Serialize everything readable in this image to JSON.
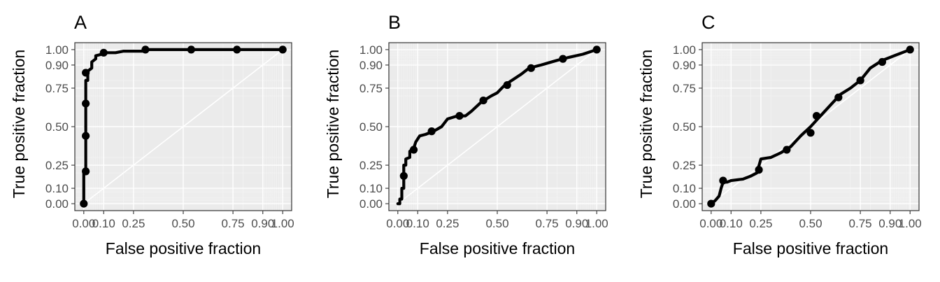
{
  "chart_data": [
    {
      "type": "line",
      "panel": "A",
      "title": "A",
      "xlabel": "False positive fraction",
      "ylabel": "True positive fraction",
      "xlim": [
        0,
        1
      ],
      "ylim": [
        0,
        1
      ],
      "xticks": [
        0.0,
        0.1,
        0.25,
        0.5,
        0.75,
        0.9,
        1.0
      ],
      "xtick_labels": [
        "0.00",
        "0.10",
        "0.25",
        "0.50",
        "0.75",
        "0.90",
        "1.00"
      ],
      "yticks": [
        0.0,
        0.1,
        0.25,
        0.5,
        0.75,
        0.9,
        1.0
      ],
      "ytick_labels": [
        "0.00",
        "0.10",
        "0.25",
        "0.50",
        "0.75",
        "0.90",
        "1.00"
      ],
      "series": [
        {
          "curve": [
            [
              0,
              0
            ],
            [
              0,
              0.2
            ],
            [
              0.01,
              0.2
            ],
            [
              0.01,
              0.45
            ],
            [
              0.01,
              0.7
            ],
            [
              0.01,
              0.8
            ],
            [
              0.02,
              0.8
            ],
            [
              0.02,
              0.86
            ],
            [
              0.04,
              0.88
            ],
            [
              0.04,
              0.92
            ],
            [
              0.06,
              0.94
            ],
            [
              0.06,
              0.96
            ],
            [
              0.09,
              0.97
            ],
            [
              0.1,
              0.98
            ],
            [
              0.16,
              0.98
            ],
            [
              0.2,
              0.99
            ],
            [
              0.3,
              0.99
            ],
            [
              0.31,
              1.0
            ],
            [
              1.0,
              1.0
            ]
          ],
          "points": [
            [
              0,
              0
            ],
            [
              0.01,
              0.21
            ],
            [
              0.01,
              0.44
            ],
            [
              0.01,
              0.65
            ],
            [
              0.01,
              0.85
            ],
            [
              0.1,
              0.98
            ],
            [
              0.31,
              1.0
            ],
            [
              0.54,
              1.0
            ],
            [
              0.77,
              1.0
            ],
            [
              1.0,
              1.0
            ]
          ]
        }
      ]
    },
    {
      "type": "line",
      "panel": "B",
      "title": "B",
      "xlabel": "False positive fraction",
      "ylabel": "True positive fraction",
      "xlim": [
        0,
        1
      ],
      "ylim": [
        0,
        1
      ],
      "xticks": [
        0.0,
        0.1,
        0.25,
        0.5,
        0.75,
        0.9,
        1.0
      ],
      "xtick_labels": [
        "0.00",
        "0.10",
        "0.25",
        "0.50",
        "0.75",
        "0.90",
        "1.00"
      ],
      "yticks": [
        0.0,
        0.1,
        0.25,
        0.5,
        0.75,
        0.9,
        1.0
      ],
      "ytick_labels": [
        "0.00",
        "0.10",
        "0.25",
        "0.50",
        "0.75",
        "0.90",
        "1.00"
      ],
      "series": [
        {
          "curve": [
            [
              0,
              0
            ],
            [
              0.01,
              0
            ],
            [
              0.01,
              0.03
            ],
            [
              0.02,
              0.03
            ],
            [
              0.02,
              0.1
            ],
            [
              0.03,
              0.1
            ],
            [
              0.03,
              0.25
            ],
            [
              0.04,
              0.25
            ],
            [
              0.04,
              0.29
            ],
            [
              0.06,
              0.3
            ],
            [
              0.06,
              0.34
            ],
            [
              0.08,
              0.36
            ],
            [
              0.09,
              0.4
            ],
            [
              0.11,
              0.44
            ],
            [
              0.14,
              0.45
            ],
            [
              0.18,
              0.47
            ],
            [
              0.22,
              0.5
            ],
            [
              0.25,
              0.55
            ],
            [
              0.3,
              0.57
            ],
            [
              0.34,
              0.57
            ],
            [
              0.37,
              0.6
            ],
            [
              0.42,
              0.66
            ],
            [
              0.47,
              0.7
            ],
            [
              0.5,
              0.72
            ],
            [
              0.53,
              0.76
            ],
            [
              0.55,
              0.78
            ],
            [
              0.62,
              0.84
            ],
            [
              0.66,
              0.88
            ],
            [
              0.72,
              0.9
            ],
            [
              0.8,
              0.93
            ],
            [
              0.86,
              0.95
            ],
            [
              0.93,
              0.97
            ],
            [
              1.0,
              1.0
            ]
          ],
          "points": [
            [
              0.03,
              0.18
            ],
            [
              0.08,
              0.35
            ],
            [
              0.17,
              0.47
            ],
            [
              0.31,
              0.57
            ],
            [
              0.43,
              0.67
            ],
            [
              0.55,
              0.77
            ],
            [
              0.67,
              0.88
            ],
            [
              0.83,
              0.94
            ],
            [
              1.0,
              1.0
            ]
          ]
        }
      ]
    },
    {
      "type": "line",
      "panel": "C",
      "title": "C",
      "xlabel": "False positive fraction",
      "ylabel": "True positive fraction",
      "xlim": [
        0,
        1
      ],
      "ylim": [
        0,
        1
      ],
      "xticks": [
        0.0,
        0.1,
        0.25,
        0.5,
        0.75,
        0.9,
        1.0
      ],
      "xtick_labels": [
        "0.00",
        "0.10",
        "0.25",
        "0.50",
        "0.75",
        "0.90",
        "1.00"
      ],
      "yticks": [
        0.0,
        0.1,
        0.25,
        0.5,
        0.75,
        0.9,
        1.0
      ],
      "ytick_labels": [
        "0.00",
        "0.10",
        "0.25",
        "0.50",
        "0.75",
        "0.90",
        "1.00"
      ],
      "series": [
        {
          "curve": [
            [
              0,
              0
            ],
            [
              0.02,
              0.02
            ],
            [
              0.04,
              0.05
            ],
            [
              0.05,
              0.1
            ],
            [
              0.06,
              0.14
            ],
            [
              0.08,
              0.14
            ],
            [
              0.1,
              0.15
            ],
            [
              0.16,
              0.16
            ],
            [
              0.2,
              0.18
            ],
            [
              0.23,
              0.2
            ],
            [
              0.25,
              0.29
            ],
            [
              0.3,
              0.3
            ],
            [
              0.35,
              0.33
            ],
            [
              0.4,
              0.37
            ],
            [
              0.45,
              0.44
            ],
            [
              0.5,
              0.5
            ],
            [
              0.55,
              0.57
            ],
            [
              0.6,
              0.64
            ],
            [
              0.65,
              0.71
            ],
            [
              0.7,
              0.75
            ],
            [
              0.75,
              0.8
            ],
            [
              0.8,
              0.88
            ],
            [
              0.86,
              0.93
            ],
            [
              0.92,
              0.96
            ],
            [
              1.0,
              1.0
            ]
          ],
          "points": [
            [
              0,
              0
            ],
            [
              0.06,
              0.15
            ],
            [
              0.24,
              0.22
            ],
            [
              0.38,
              0.35
            ],
            [
              0.5,
              0.46
            ],
            [
              0.53,
              0.57
            ],
            [
              0.64,
              0.69
            ],
            [
              0.75,
              0.8
            ],
            [
              0.86,
              0.92
            ],
            [
              1.0,
              1.0
            ]
          ]
        }
      ]
    }
  ]
}
